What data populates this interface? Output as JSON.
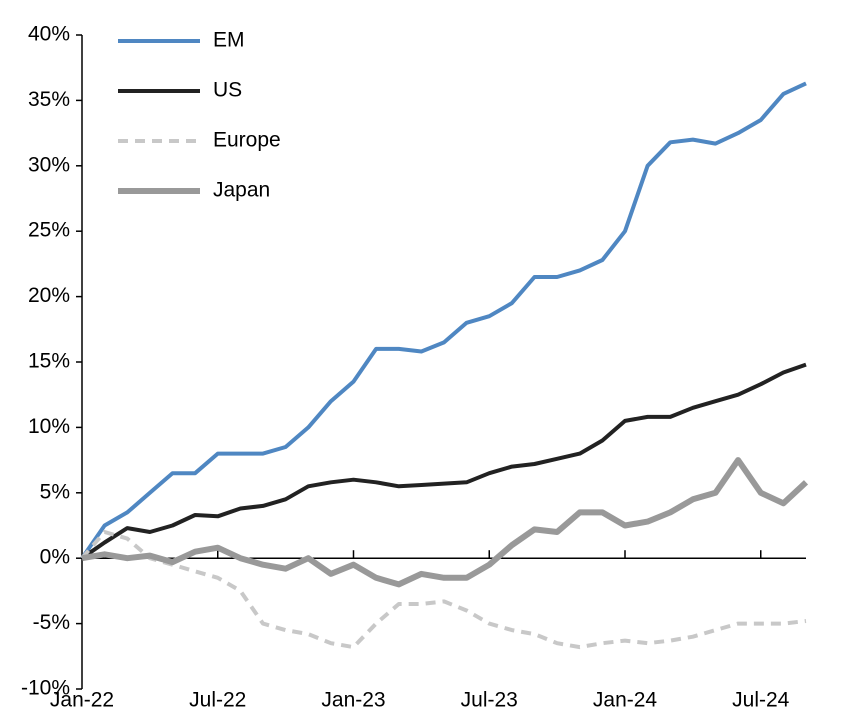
{
  "chart_data": {
    "type": "line",
    "categories": [
      "Jan-22",
      null,
      null,
      null,
      null,
      null,
      "Jul-22",
      null,
      null,
      null,
      null,
      null,
      "Jan-23",
      null,
      null,
      null,
      null,
      null,
      "Jul-23",
      null,
      null,
      null,
      null,
      null,
      "Jan-24",
      null,
      null,
      null,
      null,
      null,
      "Jul-24",
      null,
      null
    ],
    "series": [
      {
        "name": "EM",
        "color": "#4f87c2",
        "values": [
          0,
          2.5,
          3.5,
          5,
          6.5,
          6.5,
          8,
          8,
          8,
          8.5,
          10,
          12,
          13.5,
          16,
          16,
          15.8,
          16.5,
          18,
          18.5,
          19.5,
          21.5,
          21.5,
          22,
          22.8,
          25,
          30,
          31.8,
          32,
          31.7,
          32.5,
          33.5,
          35.5,
          36.3
        ]
      },
      {
        "name": "US",
        "color": "#222222",
        "values": [
          0,
          1.2,
          2.3,
          2,
          2.5,
          3.3,
          3.2,
          3.8,
          4,
          4.5,
          5.5,
          5.8,
          6,
          5.8,
          5.5,
          5.6,
          5.7,
          5.8,
          6.5,
          7,
          7.2,
          7.6,
          8,
          9,
          10.5,
          10.8,
          10.8,
          11.5,
          12,
          12.5,
          13.3,
          14.2,
          14.8
        ]
      },
      {
        "name": "Europe",
        "color": "#c8c8c8",
        "dashed": true,
        "values": [
          0,
          2,
          1.5,
          0,
          -0.5,
          -1,
          -1.5,
          -2.5,
          -5,
          -5.5,
          -5.8,
          -6.5,
          -6.8,
          -5,
          -3.5,
          -3.5,
          -3.3,
          -4,
          -5,
          -5.5,
          -5.8,
          -6.5,
          -6.8,
          -6.5,
          -6.3,
          -6.5,
          -6.3,
          -6,
          -5.5,
          -5,
          -5,
          -5,
          -4.8
        ]
      },
      {
        "name": "Japan",
        "color": "#999999",
        "values": [
          0,
          0.3,
          0,
          0.2,
          -0.3,
          0.5,
          0.8,
          0,
          -0.5,
          -0.8,
          0,
          -1.2,
          -0.5,
          -1.5,
          -2,
          -1.2,
          -1.5,
          -1.5,
          -0.5,
          1,
          2.2,
          2,
          3.5,
          3.5,
          2.5,
          2.8,
          3.5,
          4.5,
          5,
          7.5,
          5,
          4.2,
          5.8
        ]
      }
    ],
    "ylim": [
      -10,
      40
    ],
    "yticks": [
      {
        "value": -10,
        "label": "-10%"
      },
      {
        "value": -5,
        "label": "-5%"
      },
      {
        "value": 0,
        "label": "0%"
      },
      {
        "value": 5,
        "label": "5%"
      },
      {
        "value": 10,
        "label": "10%"
      },
      {
        "value": 15,
        "label": "15%"
      },
      {
        "value": 20,
        "label": "20%"
      },
      {
        "value": 25,
        "label": "25%"
      },
      {
        "value": 30,
        "label": "30%"
      },
      {
        "value": 35,
        "label": "35%"
      },
      {
        "value": 40,
        "label": "40%"
      }
    ],
    "legend": "top-left"
  }
}
